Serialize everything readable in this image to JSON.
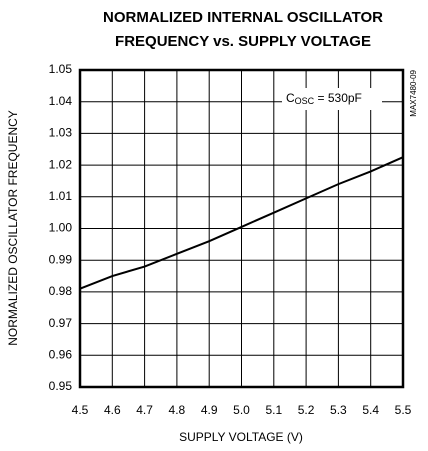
{
  "chart_data": {
    "type": "line",
    "title": [
      "NORMALIZED INTERNAL OSCILLATOR",
      "FREQUENCY vs. SUPPLY VOLTAGE"
    ],
    "xlabel": "SUPPLY VOLTAGE (V)",
    "ylabel": "NORMALIZED OSCILLATOR FREQUENCY",
    "annotation": [
      "C",
      "OSC",
      " = 530pF"
    ],
    "figure_id": "MAX7480-09",
    "x": [
      4.5,
      4.6,
      4.7,
      4.8,
      4.9,
      5.0,
      5.1,
      5.2,
      5.3,
      5.4,
      5.5
    ],
    "values": [
      0.981,
      0.985,
      0.988,
      0.992,
      0.996,
      1.0005,
      1.005,
      1.0095,
      1.014,
      1.018,
      1.0225
    ],
    "color": "#000000",
    "xlim": [
      4.5,
      5.5
    ],
    "xticks": [
      4.5,
      4.6,
      4.7,
      4.8,
      4.9,
      {
        "value": 5,
        "label": "5.0"
      },
      5.1,
      5.2,
      5.3,
      5.4,
      5.5
    ],
    "ylim": [
      0.95,
      1.05
    ],
    "yticks": [
      0.95,
      0.96,
      0.97,
      0.98,
      0.99,
      {
        "value": 1,
        "label": "1.00"
      },
      1.01,
      1.02,
      1.03,
      1.04,
      1.05
    ],
    "grid": true
  }
}
